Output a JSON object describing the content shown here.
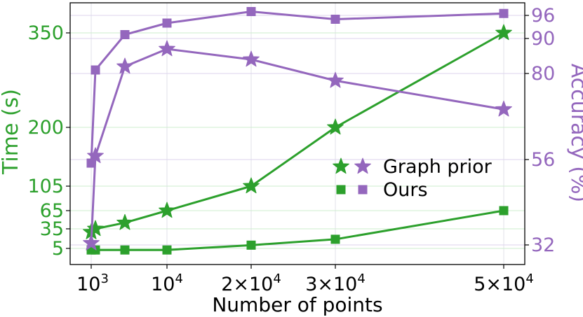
{
  "chart_data": {
    "type": "line",
    "xlabel": "Number of points",
    "x_ticks": [
      {
        "value": 1000,
        "base": "10",
        "exp": "3"
      },
      {
        "value": 10000,
        "base": "10",
        "exp": "4"
      },
      {
        "value": 20000,
        "base": "2×10",
        "exp": "4"
      },
      {
        "value": 30000,
        "base": "3×10",
        "exp": "4"
      },
      {
        "value": 50000,
        "base": "5×10",
        "exp": "4"
      }
    ],
    "left_axis": {
      "label": "Time (s)",
      "color": "#2ca02c",
      "ticks": [
        5,
        35,
        65,
        105,
        200,
        350
      ],
      "scale": "sqrt"
    },
    "right_axis": {
      "label": "Accuracy (%)",
      "color": "#9467bd",
      "ticks": [
        32,
        56,
        80,
        90,
        96
      ]
    },
    "series": [
      {
        "axis": "left",
        "marker": "star",
        "color": "#2ca02c",
        "x": [
          1000,
          1500,
          5000,
          10000,
          20000,
          30000,
          50000
        ],
        "values": [
          30,
          35,
          45,
          65,
          105,
          200,
          350
        ]
      },
      {
        "axis": "left",
        "marker": "square",
        "color": "#2ca02c",
        "x": [
          1000,
          1500,
          5000,
          10000,
          20000,
          30000,
          50000
        ],
        "values": [
          4,
          4,
          4,
          4,
          10,
          19,
          65
        ]
      },
      {
        "axis": "right",
        "marker": "star",
        "color": "#9467bd",
        "x": [
          1000,
          1500,
          5000,
          10000,
          20000,
          30000,
          50000
        ],
        "values": [
          32.5,
          57,
          82,
          87,
          84,
          78,
          70
        ]
      },
      {
        "axis": "right",
        "marker": "square",
        "color": "#9467bd",
        "x": [
          1000,
          1500,
          5000,
          10000,
          20000,
          30000,
          50000
        ],
        "values": [
          55,
          81,
          91,
          94,
          97,
          95,
          96.5
        ]
      }
    ],
    "legend": {
      "position": "right-center",
      "entries": [
        {
          "label": "Graph prior",
          "marker": "star"
        },
        {
          "label": "Ours",
          "marker": "square"
        }
      ]
    }
  }
}
